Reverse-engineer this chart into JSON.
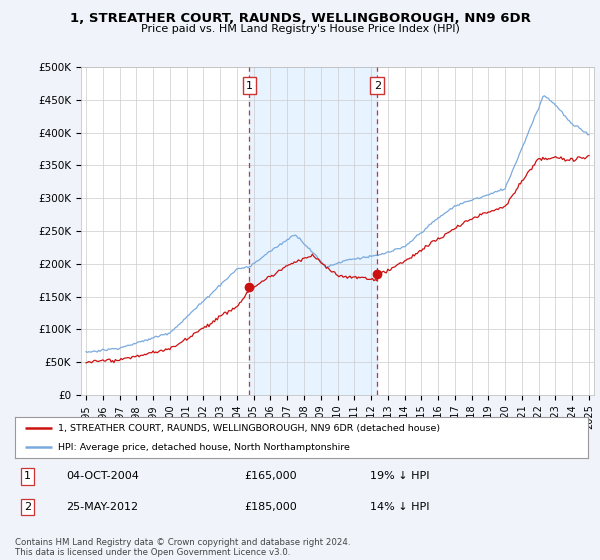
{
  "title": "1, STREATHER COURT, RAUNDS, WELLINGBOROUGH, NN9 6DR",
  "subtitle": "Price paid vs. HM Land Registry's House Price Index (HPI)",
  "ylim": [
    0,
    500000
  ],
  "yticks": [
    0,
    50000,
    100000,
    150000,
    200000,
    250000,
    300000,
    350000,
    400000,
    450000,
    500000
  ],
  "ytick_labels": [
    "£0",
    "£50K",
    "£100K",
    "£150K",
    "£200K",
    "£250K",
    "£300K",
    "£350K",
    "£400K",
    "£450K",
    "£500K"
  ],
  "purchase1_date": 2004.75,
  "purchase1_price": 165000,
  "purchase1_label": "1",
  "purchase2_date": 2012.37,
  "purchase2_price": 185000,
  "purchase2_label": "2",
  "hpi_color": "#7aaadd",
  "price_color": "#cc1111",
  "vline_color": "#cc3333",
  "shade_color": "#ddeeff",
  "background_color": "#f0f4fa",
  "plot_bg": "#ffffff",
  "legend_line1": "1, STREATHER COURT, RAUNDS, WELLINGBOROUGH, NN9 6DR (detached house)",
  "legend_line2": "HPI: Average price, detached house, North Northamptonshire",
  "annot1_date": "04-OCT-2004",
  "annot1_price": "£165,000",
  "annot1_hpi": "19% ↓ HPI",
  "annot2_date": "25-MAY-2012",
  "annot2_price": "£185,000",
  "annot2_hpi": "14% ↓ HPI",
  "footer": "Contains HM Land Registry data © Crown copyright and database right 2024.\nThis data is licensed under the Open Government Licence v3.0.",
  "xstart": 1995,
  "xend": 2025
}
